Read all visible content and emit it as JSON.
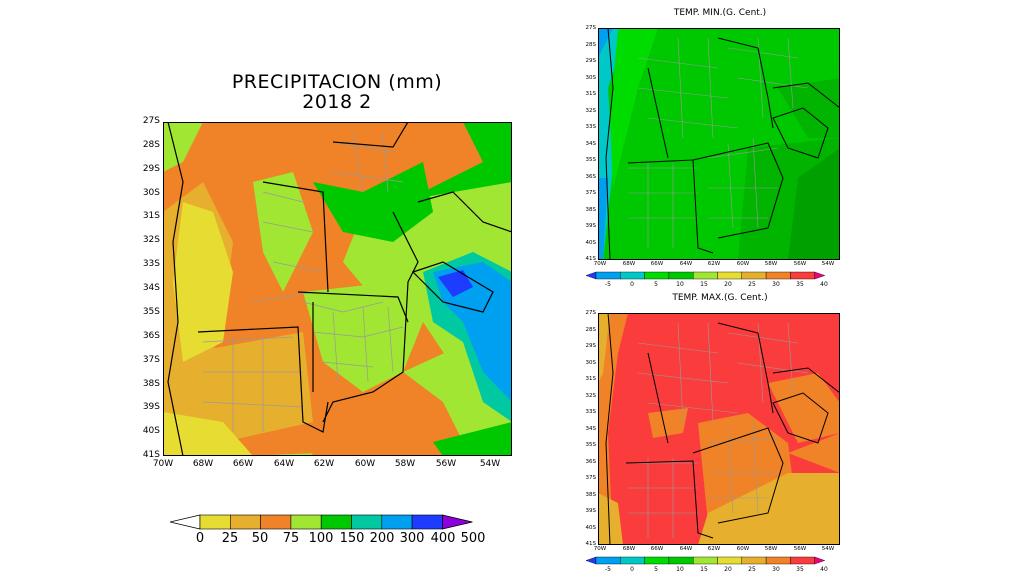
{
  "precip": {
    "title": "PRECIPITACION (mm)",
    "subtitle": "2018  2",
    "lat_ticks": [
      "27S",
      "28S",
      "29S",
      "30S",
      "31S",
      "32S",
      "33S",
      "34S",
      "35S",
      "36S",
      "37S",
      "38S",
      "39S",
      "40S",
      "41S"
    ],
    "lon_ticks": [
      "70W",
      "68W",
      "66W",
      "64W",
      "62W",
      "60W",
      "58W",
      "56W",
      "54W"
    ],
    "colorbar": {
      "labels": [
        "0",
        "25",
        "50",
        "75",
        "100",
        "150",
        "200",
        "300",
        "400",
        "500"
      ],
      "colors": [
        "#e6dc32",
        "#e6af2d",
        "#f08228",
        "#a0e632",
        "#00c800",
        "#00c8a0",
        "#00a0f0",
        "#1e3cff",
        "#8c00dc"
      ]
    }
  },
  "tmin": {
    "title": "TEMP. MIN.(G. Cent.)",
    "lat_ticks": [
      "27S",
      "28S",
      "29S",
      "30S",
      "31S",
      "32S",
      "33S",
      "34S",
      "35S",
      "36S",
      "37S",
      "38S",
      "39S",
      "40S",
      "41S"
    ],
    "lon_ticks": [
      "70W",
      "68W",
      "66W",
      "64W",
      "62W",
      "60W",
      "58W",
      "56W",
      "54W"
    ],
    "colorbar": {
      "labels": [
        "-5",
        "0",
        "5",
        "10",
        "15",
        "20",
        "25",
        "30",
        "35",
        "40"
      ],
      "colors": [
        "#1e3cff",
        "#00a0f0",
        "#00c8c8",
        "#00dc00",
        "#00c800",
        "#a0e632",
        "#e6dc32",
        "#e6af2d",
        "#f08228",
        "#fa3c3c",
        "#f00082"
      ]
    }
  },
  "tmax": {
    "title": "TEMP. MAX.(G. Cent.)",
    "lat_ticks": [
      "27S",
      "28S",
      "29S",
      "30S",
      "31S",
      "32S",
      "33S",
      "34S",
      "35S",
      "36S",
      "37S",
      "38S",
      "39S",
      "40S",
      "41S"
    ],
    "lon_ticks": [
      "70W",
      "68W",
      "66W",
      "64W",
      "62W",
      "60W",
      "58W",
      "56W",
      "54W"
    ],
    "colorbar": {
      "labels": [
        "-5",
        "0",
        "5",
        "10",
        "15",
        "20",
        "25",
        "30",
        "35",
        "40"
      ],
      "colors": [
        "#1e3cff",
        "#00a0f0",
        "#00c8c8",
        "#00dc00",
        "#00c800",
        "#a0e632",
        "#e6dc32",
        "#e6af2d",
        "#f08228",
        "#fa3c3c",
        "#f00082"
      ]
    }
  }
}
